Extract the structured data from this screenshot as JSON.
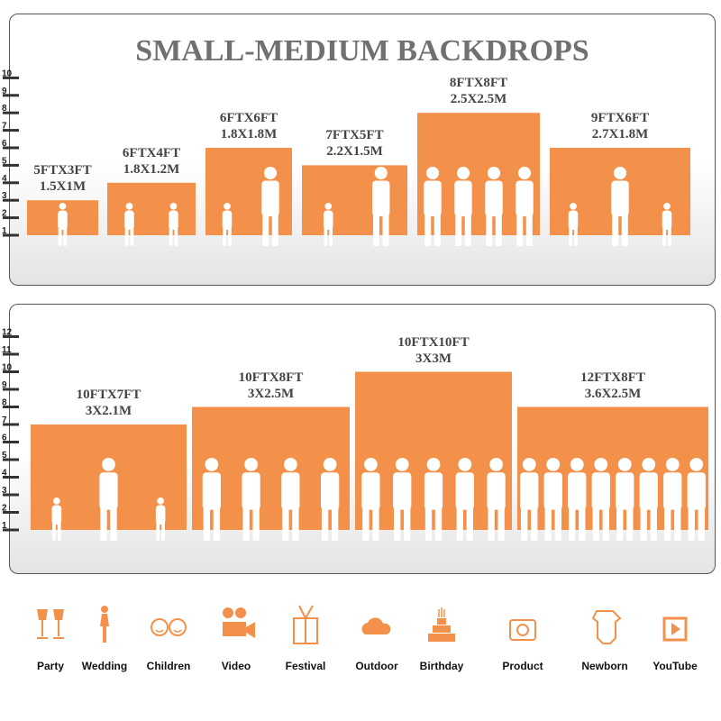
{
  "title": "SMALL-MEDIUM BACKDROPS",
  "accent": "#f3914a",
  "panels": [
    {
      "ticks": [
        "1",
        "2",
        "3",
        "4",
        "5",
        "6",
        "7",
        "8",
        "9",
        "10"
      ],
      "backdrops": [
        {
          "ft": "5FTX3FT",
          "m": "1.5X1M",
          "height_ft": 3,
          "people": 1
        },
        {
          "ft": "6FTX4FT",
          "m": "1.8X1.2M",
          "height_ft": 4,
          "people": 2
        },
        {
          "ft": "6FTX6FT",
          "m": "1.8X1.8M",
          "height_ft": 6,
          "people": 2
        },
        {
          "ft": "7FTX5FT",
          "m": "2.2X1.5M",
          "height_ft": 5,
          "people": 2
        },
        {
          "ft": "8FTX8FT",
          "m": "2.5X2.5M",
          "height_ft": 8,
          "people": 4
        },
        {
          "ft": "9FTX6FT",
          "m": "2.7X1.8M",
          "height_ft": 6,
          "people": 3
        }
      ]
    },
    {
      "ticks": [
        "1",
        "2",
        "3",
        "4",
        "5",
        "6",
        "7",
        "8",
        "9",
        "10",
        "11",
        "12"
      ],
      "backdrops": [
        {
          "ft": "10FTX7FT",
          "m": "3X2.1M",
          "height_ft": 7,
          "people": 3
        },
        {
          "ft": "10FTX8FT",
          "m": "3X2.5M",
          "height_ft": 8,
          "people": 4
        },
        {
          "ft": "10FTX10FT",
          "m": "3X3M",
          "height_ft": 10,
          "people": 5
        },
        {
          "ft": "12FTX8FT",
          "m": "3.6X2.5M",
          "height_ft": 8,
          "people": 8
        }
      ]
    }
  ],
  "uses": [
    {
      "label": "Party",
      "icon": "wine-glasses-icon"
    },
    {
      "label": "Wedding",
      "icon": "wedding-couple-icon"
    },
    {
      "label": "Children",
      "icon": "children-faces-icon"
    },
    {
      "label": "Video",
      "icon": "movie-camera-icon"
    },
    {
      "label": "Festival",
      "icon": "gift-box-icon"
    },
    {
      "label": "Outdoor",
      "icon": "cloud-icon"
    },
    {
      "label": "Birthday",
      "icon": "birthday-cake-icon"
    },
    {
      "label": "Product",
      "icon": "camera-icon"
    },
    {
      "label": "Newborn",
      "icon": "baby-onesie-icon"
    },
    {
      "label": "YouTube",
      "icon": "play-button-icon"
    }
  ]
}
